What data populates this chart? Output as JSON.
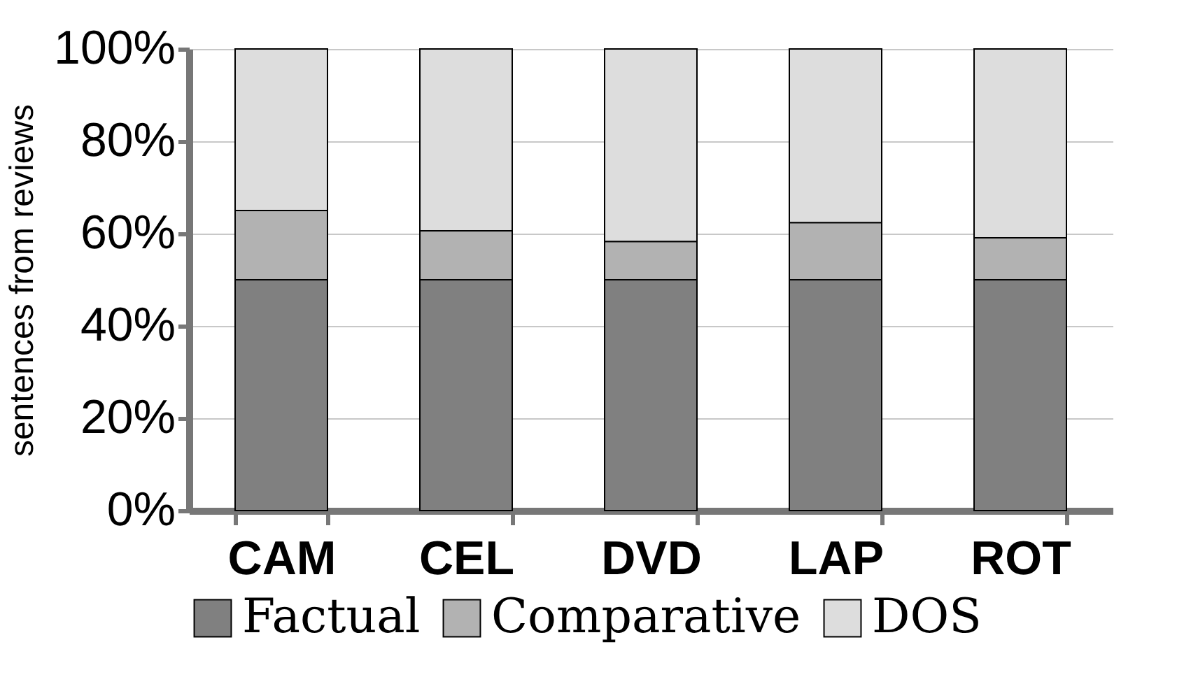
{
  "chart_data": {
    "type": "bar",
    "stacked": true,
    "ylabel": "sentences from reviews",
    "categories": [
      "CAM",
      "CEL",
      "DVD",
      "LAP",
      "ROT"
    ],
    "series": [
      {
        "name": "Factual",
        "color": "#808080",
        "values": [
          50,
          50,
          50,
          50,
          50
        ]
      },
      {
        "name": "Comparative",
        "color": "#b2b2b2",
        "values": [
          15,
          10.6,
          8.3,
          12.4,
          9.1
        ]
      },
      {
        "name": "DOS",
        "color": "#dddddd",
        "values": [
          35,
          39.4,
          41.7,
          37.6,
          40.9
        ]
      }
    ],
    "ylim": [
      0,
      100
    ],
    "yticks": [
      {
        "value": 0,
        "label": "0%"
      },
      {
        "value": 20,
        "label": "20%"
      },
      {
        "value": 40,
        "label": "40%"
      },
      {
        "value": 60,
        "label": "60%"
      },
      {
        "value": 80,
        "label": "80%"
      },
      {
        "value": 100,
        "label": "100%"
      }
    ],
    "grid": "y",
    "legend": "bottom"
  }
}
